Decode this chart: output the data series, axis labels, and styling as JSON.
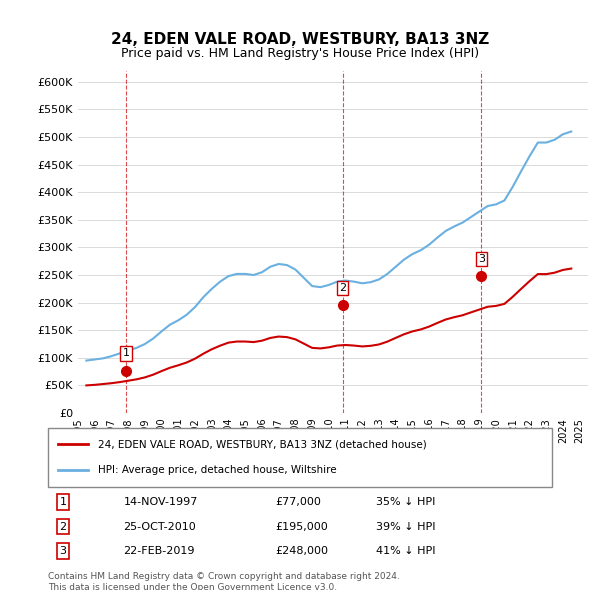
{
  "title": "24, EDEN VALE ROAD, WESTBURY, BA13 3NZ",
  "subtitle": "Price paid vs. HM Land Registry's House Price Index (HPI)",
  "hpi_label": "HPI: Average price, detached house, Wiltshire",
  "property_label": "24, EDEN VALE ROAD, WESTBURY, BA13 3NZ (detached house)",
  "footer1": "Contains HM Land Registry data © Crown copyright and database right 2024.",
  "footer2": "This data is licensed under the Open Government Licence v3.0.",
  "ylim": [
    0,
    620000
  ],
  "yticks": [
    0,
    50000,
    100000,
    150000,
    200000,
    250000,
    300000,
    350000,
    400000,
    450000,
    500000,
    550000,
    600000
  ],
  "ytick_labels": [
    "£0",
    "£50K",
    "£100K",
    "£150K",
    "£200K",
    "£250K",
    "£300K",
    "£350K",
    "£400K",
    "£450K",
    "£500K",
    "£550K",
    "£600K"
  ],
  "hpi_color": "#6ab0e0",
  "property_color": "#cc0000",
  "transaction_color": "#cc0000",
  "vline_color": "#cc0000",
  "transactions": [
    {
      "date": 1997.87,
      "price": 77000,
      "label": "1"
    },
    {
      "date": 2010.82,
      "price": 195000,
      "label": "2"
    },
    {
      "date": 2019.13,
      "price": 248000,
      "label": "3"
    }
  ],
  "table_rows": [
    {
      "num": "1",
      "date": "14-NOV-1997",
      "price": "£77,000",
      "note": "35% ↓ HPI"
    },
    {
      "num": "2",
      "date": "25-OCT-2010",
      "price": "£195,000",
      "note": "39% ↓ HPI"
    },
    {
      "num": "3",
      "date": "22-FEB-2019",
      "price": "£248,000",
      "note": "41% ↓ HPI"
    }
  ],
  "hpi_data": {
    "years": [
      1995.5,
      1996.0,
      1996.5,
      1997.0,
      1997.5,
      1998.0,
      1998.5,
      1999.0,
      1999.5,
      2000.0,
      2000.5,
      2001.0,
      2001.5,
      2002.0,
      2002.5,
      2003.0,
      2003.5,
      2004.0,
      2004.5,
      2005.0,
      2005.5,
      2006.0,
      2006.5,
      2007.0,
      2007.5,
      2008.0,
      2008.5,
      2009.0,
      2009.5,
      2010.0,
      2010.5,
      2011.0,
      2011.5,
      2012.0,
      2012.5,
      2013.0,
      2013.5,
      2014.0,
      2014.5,
      2015.0,
      2015.5,
      2016.0,
      2016.5,
      2017.0,
      2017.5,
      2018.0,
      2018.5,
      2019.0,
      2019.5,
      2020.0,
      2020.5,
      2021.0,
      2021.5,
      2022.0,
      2022.5,
      2023.0,
      2023.5,
      2024.0,
      2024.5
    ],
    "values": [
      95000,
      97000,
      99000,
      103000,
      108000,
      113000,
      118000,
      125000,
      135000,
      148000,
      160000,
      168000,
      178000,
      192000,
      210000,
      225000,
      238000,
      248000,
      252000,
      252000,
      250000,
      255000,
      265000,
      270000,
      268000,
      260000,
      245000,
      230000,
      228000,
      232000,
      238000,
      240000,
      238000,
      235000,
      237000,
      242000,
      252000,
      265000,
      278000,
      288000,
      295000,
      305000,
      318000,
      330000,
      338000,
      345000,
      355000,
      365000,
      375000,
      378000,
      385000,
      410000,
      438000,
      465000,
      490000,
      490000,
      495000,
      505000,
      510000
    ]
  },
  "property_hpi_data": {
    "years": [
      1995.5,
      1996.0,
      1996.5,
      1997.0,
      1997.5,
      1998.0,
      1998.5,
      1999.0,
      1999.5,
      2000.0,
      2000.5,
      2001.0,
      2001.5,
      2002.0,
      2002.5,
      2003.0,
      2003.5,
      2004.0,
      2004.5,
      2005.0,
      2005.5,
      2006.0,
      2006.5,
      2007.0,
      2007.5,
      2008.0,
      2008.5,
      2009.0,
      2009.5,
      2010.0,
      2010.5,
      2011.0,
      2011.5,
      2012.0,
      2012.5,
      2013.0,
      2013.5,
      2014.0,
      2014.5,
      2015.0,
      2015.5,
      2016.0,
      2016.5,
      2017.0,
      2017.5,
      2018.0,
      2018.5,
      2019.0,
      2019.5,
      2020.0,
      2020.5,
      2021.0,
      2021.5,
      2022.0,
      2022.5,
      2023.0,
      2023.5,
      2024.0,
      2024.5
    ],
    "values": [
      50000,
      51000,
      52500,
      54000,
      56000,
      58500,
      61000,
      64500,
      69500,
      76000,
      82000,
      86500,
      91500,
      98500,
      107500,
      115500,
      122000,
      127500,
      129500,
      129500,
      128500,
      131000,
      136000,
      138500,
      137500,
      133500,
      125800,
      118000,
      117000,
      119000,
      122200,
      123200,
      122200,
      120600,
      121700,
      124200,
      129300,
      136100,
      142700,
      147800,
      151400,
      156600,
      163300,
      169500,
      173600,
      177100,
      182300,
      187400,
      192500,
      194000,
      197700,
      210600,
      224900,
      238800,
      251700,
      251600,
      254200,
      259200,
      261700
    ]
  }
}
